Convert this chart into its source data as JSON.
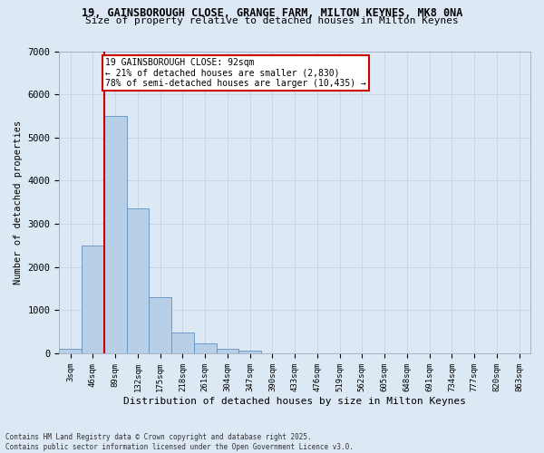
{
  "title_line1": "19, GAINSBOROUGH CLOSE, GRANGE FARM, MILTON KEYNES, MK8 0NA",
  "title_line2": "Size of property relative to detached houses in Milton Keynes",
  "xlabel": "Distribution of detached houses by size in Milton Keynes",
  "ylabel": "Number of detached properties",
  "bar_labels": [
    "3sqm",
    "46sqm",
    "89sqm",
    "132sqm",
    "175sqm",
    "218sqm",
    "261sqm",
    "304sqm",
    "347sqm",
    "390sqm",
    "433sqm",
    "476sqm",
    "519sqm",
    "562sqm",
    "605sqm",
    "648sqm",
    "691sqm",
    "734sqm",
    "777sqm",
    "820sqm",
    "863sqm"
  ],
  "bar_values": [
    100,
    2500,
    5500,
    3350,
    1300,
    480,
    220,
    100,
    70,
    0,
    0,
    0,
    0,
    0,
    0,
    0,
    0,
    0,
    0,
    0,
    0
  ],
  "bar_color": "#b8cfe8",
  "bar_edge_color": "#6090c0",
  "annotation_title": "19 GAINSBOROUGH CLOSE: 92sqm",
  "annotation_line1": "← 21% of detached houses are smaller (2,830)",
  "annotation_line2": "78% of semi-detached houses are larger (10,435) →",
  "annotation_box_color": "#ffffff",
  "annotation_box_edge_color": "#cc0000",
  "vline_color": "#cc0000",
  "vline_x_index": 2,
  "ylim": [
    0,
    7000
  ],
  "yticks": [
    0,
    1000,
    2000,
    3000,
    4000,
    5000,
    6000,
    7000
  ],
  "grid_color": "#c8d4e8",
  "background_color": "#dce8f4",
  "footer_line1": "Contains HM Land Registry data © Crown copyright and database right 2025.",
  "footer_line2": "Contains public sector information licensed under the Open Government Licence v3.0."
}
